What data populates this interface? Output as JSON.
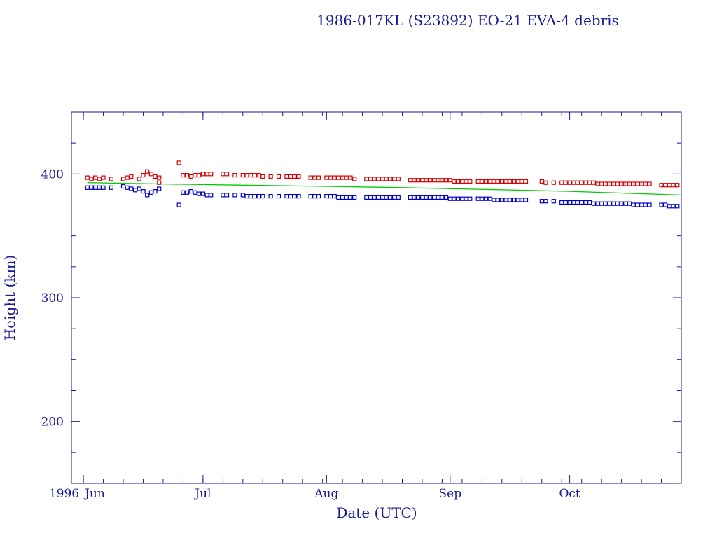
{
  "chart_data": {
    "type": "scatter",
    "title": "1986-017KL (S23892) EO-21 EVA-4 debris",
    "xlabel": "Date (UTC)",
    "ylabel": "Height (km)",
    "x_start_label": "1996",
    "x_ticks": [
      {
        "label": "Jun",
        "date": "1996-06-01"
      },
      {
        "label": "Jul",
        "date": "1996-07-01"
      },
      {
        "label": "Aug",
        "date": "1996-08-01"
      },
      {
        "label": "Sep",
        "date": "1996-09-01"
      },
      {
        "label": "Oct",
        "date": "1996-10-01"
      }
    ],
    "xlim": [
      "1996-05-29",
      "1996-10-29"
    ],
    "ylim": [
      150,
      450
    ],
    "y_ticks": [
      200,
      300,
      400
    ],
    "grid": false,
    "series": [
      {
        "color": "#dd0000",
        "marker": "square",
        "points": [
          [
            "1996-06-02",
            397
          ],
          [
            "1996-06-03",
            396
          ],
          [
            "1996-06-04",
            397
          ],
          [
            "1996-06-05",
            396
          ],
          [
            "1996-06-06",
            397
          ],
          [
            "1996-06-08",
            396
          ],
          [
            "1996-06-11",
            396
          ],
          [
            "1996-06-12",
            397
          ],
          [
            "1996-06-13",
            398
          ],
          [
            "1996-06-15",
            396
          ],
          [
            "1996-06-16",
            399
          ],
          [
            "1996-06-17",
            402
          ],
          [
            "1996-06-18",
            400
          ],
          [
            "1996-06-19",
            398
          ],
          [
            "1996-06-20",
            393
          ],
          [
            "1996-06-20",
            397
          ],
          [
            "1996-06-25",
            409
          ],
          [
            "1996-06-26",
            399
          ],
          [
            "1996-06-27",
            399
          ],
          [
            "1996-06-28",
            398
          ],
          [
            "1996-06-29",
            399
          ],
          [
            "1996-06-30",
            399
          ],
          [
            "1996-07-01",
            400
          ],
          [
            "1996-07-02",
            400
          ],
          [
            "1996-07-03",
            400
          ],
          [
            "1996-07-06",
            400
          ],
          [
            "1996-07-07",
            400
          ],
          [
            "1996-07-09",
            399
          ],
          [
            "1996-07-11",
            399
          ],
          [
            "1996-07-12",
            399
          ],
          [
            "1996-07-13",
            399
          ],
          [
            "1996-07-14",
            399
          ],
          [
            "1996-07-15",
            399
          ],
          [
            "1996-07-16",
            398
          ],
          [
            "1996-07-18",
            398
          ],
          [
            "1996-07-20",
            398
          ],
          [
            "1996-07-22",
            398
          ],
          [
            "1996-07-23",
            398
          ],
          [
            "1996-07-24",
            398
          ],
          [
            "1996-07-25",
            398
          ],
          [
            "1996-07-28",
            397
          ],
          [
            "1996-07-29",
            397
          ],
          [
            "1996-07-30",
            397
          ],
          [
            "1996-08-01",
            397
          ],
          [
            "1996-08-02",
            397
          ],
          [
            "1996-08-03",
            397
          ],
          [
            "1996-08-04",
            397
          ],
          [
            "1996-08-05",
            397
          ],
          [
            "1996-08-06",
            397
          ],
          [
            "1996-08-07",
            397
          ],
          [
            "1996-08-08",
            396
          ],
          [
            "1996-08-11",
            396
          ],
          [
            "1996-08-12",
            396
          ],
          [
            "1996-08-13",
            396
          ],
          [
            "1996-08-14",
            396
          ],
          [
            "1996-08-15",
            396
          ],
          [
            "1996-08-16",
            396
          ],
          [
            "1996-08-17",
            396
          ],
          [
            "1996-08-18",
            396
          ],
          [
            "1996-08-19",
            396
          ],
          [
            "1996-08-22",
            395
          ],
          [
            "1996-08-23",
            395
          ],
          [
            "1996-08-24",
            395
          ],
          [
            "1996-08-25",
            395
          ],
          [
            "1996-08-26",
            395
          ],
          [
            "1996-08-27",
            395
          ],
          [
            "1996-08-28",
            395
          ],
          [
            "1996-08-29",
            395
          ],
          [
            "1996-08-30",
            395
          ],
          [
            "1996-08-31",
            395
          ],
          [
            "1996-09-01",
            395
          ],
          [
            "1996-09-02",
            394
          ],
          [
            "1996-09-03",
            394
          ],
          [
            "1996-09-04",
            394
          ],
          [
            "1996-09-05",
            394
          ],
          [
            "1996-09-06",
            394
          ],
          [
            "1996-09-08",
            394
          ],
          [
            "1996-09-09",
            394
          ],
          [
            "1996-09-10",
            394
          ],
          [
            "1996-09-11",
            394
          ],
          [
            "1996-09-12",
            394
          ],
          [
            "1996-09-13",
            394
          ],
          [
            "1996-09-14",
            394
          ],
          [
            "1996-09-15",
            394
          ],
          [
            "1996-09-16",
            394
          ],
          [
            "1996-09-17",
            394
          ],
          [
            "1996-09-18",
            394
          ],
          [
            "1996-09-19",
            394
          ],
          [
            "1996-09-20",
            394
          ],
          [
            "1996-09-24",
            394
          ],
          [
            "1996-09-25",
            393
          ],
          [
            "1996-09-27",
            393
          ],
          [
            "1996-09-29",
            393
          ],
          [
            "1996-09-30",
            393
          ],
          [
            "1996-10-01",
            393
          ],
          [
            "1996-10-02",
            393
          ],
          [
            "1996-10-03",
            393
          ],
          [
            "1996-10-04",
            393
          ],
          [
            "1996-10-05",
            393
          ],
          [
            "1996-10-06",
            393
          ],
          [
            "1996-10-07",
            393
          ],
          [
            "1996-10-08",
            392
          ],
          [
            "1996-10-09",
            392
          ],
          [
            "1996-10-10",
            392
          ],
          [
            "1996-10-11",
            392
          ],
          [
            "1996-10-12",
            392
          ],
          [
            "1996-10-13",
            392
          ],
          [
            "1996-10-14",
            392
          ],
          [
            "1996-10-15",
            392
          ],
          [
            "1996-10-16",
            392
          ],
          [
            "1996-10-17",
            392
          ],
          [
            "1996-10-18",
            392
          ],
          [
            "1996-10-19",
            392
          ],
          [
            "1996-10-20",
            392
          ],
          [
            "1996-10-21",
            392
          ],
          [
            "1996-10-24",
            391
          ],
          [
            "1996-10-25",
            391
          ],
          [
            "1996-10-26",
            391
          ],
          [
            "1996-10-27",
            391
          ],
          [
            "1996-10-28",
            391
          ]
        ]
      },
      {
        "color": "#0000cc",
        "marker": "square",
        "points": [
          [
            "1996-06-02",
            389
          ],
          [
            "1996-06-03",
            389
          ],
          [
            "1996-06-04",
            389
          ],
          [
            "1996-06-05",
            389
          ],
          [
            "1996-06-06",
            389
          ],
          [
            "1996-06-08",
            389
          ],
          [
            "1996-06-11",
            390
          ],
          [
            "1996-06-12",
            389
          ],
          [
            "1996-06-13",
            388
          ],
          [
            "1996-06-14",
            387
          ],
          [
            "1996-06-15",
            388
          ],
          [
            "1996-06-16",
            386
          ],
          [
            "1996-06-17",
            383
          ],
          [
            "1996-06-18",
            385
          ],
          [
            "1996-06-19",
            386
          ],
          [
            "1996-06-20",
            388
          ],
          [
            "1996-06-25",
            375
          ],
          [
            "1996-06-26",
            385
          ],
          [
            "1996-06-27",
            385
          ],
          [
            "1996-06-28",
            386
          ],
          [
            "1996-06-29",
            385
          ],
          [
            "1996-06-30",
            384
          ],
          [
            "1996-07-01",
            384
          ],
          [
            "1996-07-02",
            383
          ],
          [
            "1996-07-03",
            383
          ],
          [
            "1996-07-06",
            383
          ],
          [
            "1996-07-07",
            383
          ],
          [
            "1996-07-09",
            383
          ],
          [
            "1996-07-11",
            383
          ],
          [
            "1996-07-12",
            382
          ],
          [
            "1996-07-13",
            382
          ],
          [
            "1996-07-14",
            382
          ],
          [
            "1996-07-15",
            382
          ],
          [
            "1996-07-16",
            382
          ],
          [
            "1996-07-18",
            382
          ],
          [
            "1996-07-20",
            382
          ],
          [
            "1996-07-22",
            382
          ],
          [
            "1996-07-23",
            382
          ],
          [
            "1996-07-24",
            382
          ],
          [
            "1996-07-25",
            382
          ],
          [
            "1996-07-28",
            382
          ],
          [
            "1996-07-29",
            382
          ],
          [
            "1996-07-30",
            382
          ],
          [
            "1996-08-01",
            382
          ],
          [
            "1996-08-02",
            382
          ],
          [
            "1996-08-03",
            382
          ],
          [
            "1996-08-04",
            381
          ],
          [
            "1996-08-05",
            381
          ],
          [
            "1996-08-06",
            381
          ],
          [
            "1996-08-07",
            381
          ],
          [
            "1996-08-08",
            381
          ],
          [
            "1996-08-11",
            381
          ],
          [
            "1996-08-12",
            381
          ],
          [
            "1996-08-13",
            381
          ],
          [
            "1996-08-14",
            381
          ],
          [
            "1996-08-15",
            381
          ],
          [
            "1996-08-16",
            381
          ],
          [
            "1996-08-17",
            381
          ],
          [
            "1996-08-18",
            381
          ],
          [
            "1996-08-19",
            381
          ],
          [
            "1996-08-22",
            381
          ],
          [
            "1996-08-23",
            381
          ],
          [
            "1996-08-24",
            381
          ],
          [
            "1996-08-25",
            381
          ],
          [
            "1996-08-26",
            381
          ],
          [
            "1996-08-27",
            381
          ],
          [
            "1996-08-28",
            381
          ],
          [
            "1996-08-29",
            381
          ],
          [
            "1996-08-30",
            381
          ],
          [
            "1996-08-31",
            381
          ],
          [
            "1996-09-01",
            380
          ],
          [
            "1996-09-02",
            380
          ],
          [
            "1996-09-03",
            380
          ],
          [
            "1996-09-04",
            380
          ],
          [
            "1996-09-05",
            380
          ],
          [
            "1996-09-06",
            380
          ],
          [
            "1996-09-08",
            380
          ],
          [
            "1996-09-09",
            380
          ],
          [
            "1996-09-10",
            380
          ],
          [
            "1996-09-11",
            380
          ],
          [
            "1996-09-12",
            379
          ],
          [
            "1996-09-13",
            379
          ],
          [
            "1996-09-14",
            379
          ],
          [
            "1996-09-15",
            379
          ],
          [
            "1996-09-16",
            379
          ],
          [
            "1996-09-17",
            379
          ],
          [
            "1996-09-18",
            379
          ],
          [
            "1996-09-19",
            379
          ],
          [
            "1996-09-20",
            379
          ],
          [
            "1996-09-24",
            378
          ],
          [
            "1996-09-25",
            378
          ],
          [
            "1996-09-27",
            378
          ],
          [
            "1996-09-29",
            377
          ],
          [
            "1996-09-30",
            377
          ],
          [
            "1996-10-01",
            377
          ],
          [
            "1996-10-02",
            377
          ],
          [
            "1996-10-03",
            377
          ],
          [
            "1996-10-04",
            377
          ],
          [
            "1996-10-05",
            377
          ],
          [
            "1996-10-06",
            377
          ],
          [
            "1996-10-07",
            376
          ],
          [
            "1996-10-08",
            376
          ],
          [
            "1996-10-09",
            376
          ],
          [
            "1996-10-10",
            376
          ],
          [
            "1996-10-11",
            376
          ],
          [
            "1996-10-12",
            376
          ],
          [
            "1996-10-13",
            376
          ],
          [
            "1996-10-14",
            376
          ],
          [
            "1996-10-15",
            376
          ],
          [
            "1996-10-16",
            376
          ],
          [
            "1996-10-17",
            375
          ],
          [
            "1996-10-18",
            375
          ],
          [
            "1996-10-19",
            375
          ],
          [
            "1996-10-20",
            375
          ],
          [
            "1996-10-21",
            375
          ],
          [
            "1996-10-24",
            375
          ],
          [
            "1996-10-25",
            375
          ],
          [
            "1996-10-26",
            374
          ],
          [
            "1996-10-27",
            374
          ],
          [
            "1996-10-28",
            374
          ]
        ]
      },
      {
        "color": "#00cc00",
        "marker": "line",
        "points": [
          [
            "1996-06-02",
            393
          ],
          [
            "1996-06-20",
            392
          ],
          [
            "1996-07-10",
            391
          ],
          [
            "1996-08-01",
            390
          ],
          [
            "1996-08-20",
            389
          ],
          [
            "1996-09-10",
            387.5
          ],
          [
            "1996-10-01",
            386
          ],
          [
            "1996-10-29",
            383
          ]
        ]
      }
    ]
  }
}
